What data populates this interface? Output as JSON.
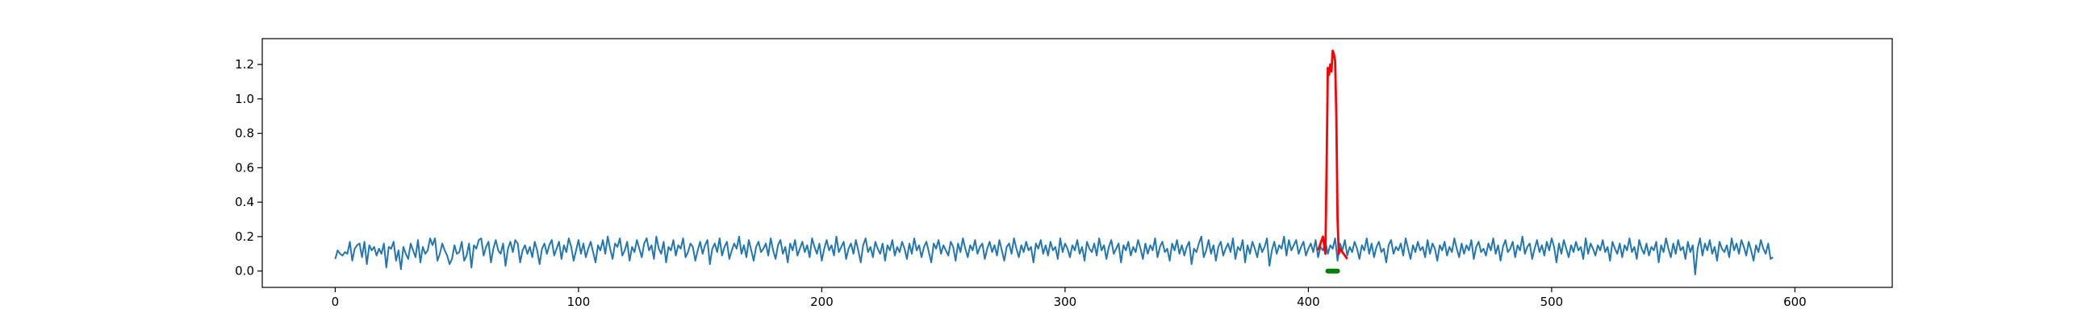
{
  "chart_data": {
    "type": "line",
    "title": "",
    "xlabel": "",
    "ylabel": "",
    "xlim": [
      -30,
      640
    ],
    "ylim": [
      -0.095,
      1.35
    ],
    "x_ticks": [
      0,
      100,
      200,
      300,
      400,
      500,
      600
    ],
    "x_tick_labels": [
      "0",
      "100",
      "200",
      "300",
      "400",
      "500",
      "600"
    ],
    "y_ticks": [
      0.0,
      0.2,
      0.4,
      0.6,
      0.8,
      1.0,
      1.2
    ],
    "y_tick_labels": [
      "0.0",
      "0.2",
      "0.4",
      "0.6",
      "0.8",
      "1.0",
      "1.2"
    ],
    "grid": false,
    "legend": "none",
    "series": [
      {
        "role": "signal",
        "color": "#1f77b4",
        "x_start": 0,
        "x_step": 1,
        "values": [
          0.07,
          0.12,
          0.1,
          0.09,
          0.11,
          0.1,
          0.17,
          0.06,
          0.13,
          0.15,
          0.16,
          0.08,
          0.17,
          0.04,
          0.15,
          0.12,
          0.14,
          0.09,
          0.13,
          0.1,
          0.16,
          0.02,
          0.14,
          0.13,
          0.17,
          0.06,
          0.12,
          0.01,
          0.14,
          0.1,
          0.07,
          0.16,
          0.12,
          0.08,
          0.18,
          0.05,
          0.14,
          0.1,
          0.12,
          0.19,
          0.15,
          0.19,
          0.06,
          0.1,
          0.16,
          0.12,
          0.09,
          0.04,
          0.07,
          0.15,
          0.1,
          0.11,
          0.17,
          0.06,
          0.09,
          0.16,
          0.02,
          0.15,
          0.13,
          0.18,
          0.19,
          0.09,
          0.14,
          0.17,
          0.05,
          0.13,
          0.18,
          0.12,
          0.1,
          0.16,
          0.03,
          0.13,
          0.17,
          0.11,
          0.18,
          0.16,
          0.05,
          0.12,
          0.15,
          0.1,
          0.14,
          0.08,
          0.17,
          0.12,
          0.04,
          0.13,
          0.16,
          0.1,
          0.15,
          0.18,
          0.09,
          0.13,
          0.17,
          0.07,
          0.15,
          0.11,
          0.19,
          0.14,
          0.06,
          0.12,
          0.18,
          0.1,
          0.16,
          0.08,
          0.13,
          0.17,
          0.11,
          0.05,
          0.15,
          0.12,
          0.18,
          0.1,
          0.2,
          0.13,
          0.07,
          0.16,
          0.14,
          0.19,
          0.09,
          0.12,
          0.17,
          0.06,
          0.14,
          0.11,
          0.18,
          0.13,
          0.08,
          0.16,
          0.19,
          0.12,
          0.15,
          0.07,
          0.2,
          0.13,
          0.1,
          0.17,
          0.05,
          0.14,
          0.12,
          0.18,
          0.09,
          0.15,
          0.13,
          0.19,
          0.08,
          0.11,
          0.16,
          0.14,
          0.06,
          0.12,
          0.17,
          0.1,
          0.15,
          0.18,
          0.04,
          0.13,
          0.16,
          0.11,
          0.19,
          0.09,
          0.14,
          0.17,
          0.07,
          0.12,
          0.16,
          0.13,
          0.2,
          0.1,
          0.15,
          0.08,
          0.18,
          0.12,
          0.06,
          0.14,
          0.17,
          0.11,
          0.13,
          0.16,
          0.09,
          0.19,
          0.12,
          0.07,
          0.15,
          0.18,
          0.1,
          0.14,
          0.05,
          0.16,
          0.12,
          0.18,
          0.09,
          0.13,
          0.17,
          0.11,
          0.15,
          0.08,
          0.19,
          0.14,
          0.1,
          0.16,
          0.06,
          0.13,
          0.18,
          0.12,
          0.15,
          0.09,
          0.2,
          0.11,
          0.14,
          0.17,
          0.07,
          0.13,
          0.16,
          0.1,
          0.18,
          0.12,
          0.05,
          0.15,
          0.19,
          0.11,
          0.14,
          0.08,
          0.17,
          0.13,
          0.1,
          0.16,
          0.06,
          0.15,
          0.12,
          0.18,
          0.09,
          0.14,
          0.11,
          0.17,
          0.13,
          0.07,
          0.16,
          0.1,
          0.19,
          0.12,
          0.15,
          0.08,
          0.14,
          0.17,
          0.11,
          0.05,
          0.16,
          0.13,
          0.18,
          0.1,
          0.15,
          0.12,
          0.09,
          0.17,
          0.14,
          0.06,
          0.16,
          0.11,
          0.19,
          0.13,
          0.08,
          0.15,
          0.12,
          0.18,
          0.1,
          0.14,
          0.16,
          0.07,
          0.13,
          0.17,
          0.11,
          0.15,
          0.09,
          0.18,
          0.12,
          0.06,
          0.14,
          0.16,
          0.1,
          0.19,
          0.13,
          0.08,
          0.15,
          0.11,
          0.17,
          0.12,
          0.14,
          0.05,
          0.16,
          0.13,
          0.18,
          0.1,
          0.15,
          0.09,
          0.17,
          0.12,
          0.14,
          0.07,
          0.19,
          0.11,
          0.16,
          0.13,
          0.08,
          0.15,
          0.12,
          0.18,
          0.1,
          0.14,
          0.06,
          0.17,
          0.13,
          0.11,
          0.16,
          0.09,
          0.19,
          0.12,
          0.15,
          0.07,
          0.14,
          0.18,
          0.1,
          0.13,
          0.16,
          0.05,
          0.15,
          0.12,
          0.17,
          0.09,
          0.14,
          0.11,
          0.18,
          0.13,
          0.07,
          0.16,
          0.1,
          0.15,
          0.12,
          0.19,
          0.08,
          0.14,
          0.17,
          0.11,
          0.13,
          0.06,
          0.16,
          0.12,
          0.18,
          0.1,
          0.15,
          0.09,
          0.14,
          0.17,
          0.04,
          0.13,
          0.11,
          0.16,
          0.2,
          0.08,
          0.12,
          0.18,
          0.1,
          0.15,
          0.06,
          0.14,
          0.17,
          0.09,
          0.13,
          0.16,
          0.11,
          0.19,
          0.07,
          0.14,
          0.12,
          0.18,
          0.05,
          0.15,
          0.1,
          0.17,
          0.13,
          0.08,
          0.16,
          0.11,
          0.14,
          0.19,
          0.03,
          0.12,
          0.17,
          0.1,
          0.15,
          0.13,
          0.2,
          0.09,
          0.18,
          0.12,
          0.15,
          0.18,
          0.1,
          0.14,
          0.17,
          0.09,
          0.13,
          0.16,
          0.11,
          0.18,
          0.08,
          0.14,
          0.12,
          0.17,
          0.1,
          0.15,
          0.13,
          0.19,
          0.06,
          0.16,
          0.12,
          0.18,
          0.09,
          0.14,
          0.11,
          0.17,
          0.13,
          0.07,
          0.15,
          0.12,
          0.19,
          0.1,
          0.16,
          0.08,
          0.14,
          0.17,
          0.11,
          0.13,
          0.05,
          0.15,
          0.18,
          0.1,
          0.14,
          0.12,
          0.16,
          0.09,
          0.19,
          0.13,
          0.07,
          0.15,
          0.11,
          0.17,
          0.12,
          0.14,
          0.08,
          0.18,
          0.1,
          0.16,
          0.13,
          0.06,
          0.15,
          0.12,
          0.17,
          0.09,
          0.14,
          0.11,
          0.19,
          0.13,
          0.08,
          0.16,
          0.1,
          0.15,
          0.12,
          0.18,
          0.07,
          0.14,
          0.17,
          0.11,
          0.13,
          0.09,
          0.16,
          0.12,
          0.19,
          0.1,
          0.15,
          0.06,
          0.14,
          0.18,
          0.11,
          0.13,
          0.17,
          0.08,
          0.15,
          0.12,
          0.2,
          0.1,
          0.14,
          0.16,
          0.07,
          0.13,
          0.18,
          0.11,
          0.15,
          0.09,
          0.17,
          0.12,
          0.19,
          0.14,
          0.05,
          0.16,
          0.1,
          0.18,
          0.13,
          0.08,
          0.15,
          0.11,
          0.17,
          0.12,
          0.14,
          0.07,
          0.19,
          0.1,
          0.16,
          0.13,
          0.09,
          0.15,
          0.12,
          0.18,
          0.11,
          0.14,
          0.06,
          0.17,
          0.13,
          0.1,
          0.16,
          0.08,
          0.15,
          0.12,
          0.19,
          0.11,
          0.14,
          0.07,
          0.18,
          0.13,
          0.1,
          0.16,
          0.09,
          0.14,
          0.12,
          0.17,
          0.05,
          0.15,
          0.11,
          0.19,
          0.13,
          0.08,
          0.16,
          0.1,
          0.18,
          0.12,
          0.14,
          0.07,
          0.17,
          0.11,
          0.15,
          -0.02,
          0.13,
          0.19,
          0.09,
          0.16,
          0.12,
          0.18,
          0.1,
          0.14,
          0.06,
          0.17,
          0.13,
          0.11,
          0.15,
          0.08,
          0.19,
          0.12,
          0.16,
          0.1,
          0.18,
          0.14,
          0.09,
          0.17,
          0.12,
          0.06,
          0.15,
          0.11,
          0.18,
          0.13,
          0.1,
          0.16,
          0.07,
          0.08
        ]
      },
      {
        "role": "anomaly",
        "color": "#ff0000",
        "x": [
          404,
          405,
          406,
          407,
          407.5,
          408,
          408.5,
          409,
          409.5,
          410,
          410.5,
          411,
          411.5,
          412,
          412.5,
          413,
          414,
          415,
          416
        ],
        "values": [
          0.12,
          0.16,
          0.2,
          0.1,
          0.6,
          1.18,
          1.14,
          1.2,
          1.16,
          1.28,
          1.26,
          1.22,
          0.9,
          0.3,
          0.1,
          0.13,
          0.11,
          0.09,
          0.07
        ]
      },
      {
        "role": "marker",
        "color": "#008000",
        "x": [
          408,
          412
        ],
        "values": [
          0.0,
          0.0
        ]
      }
    ]
  }
}
